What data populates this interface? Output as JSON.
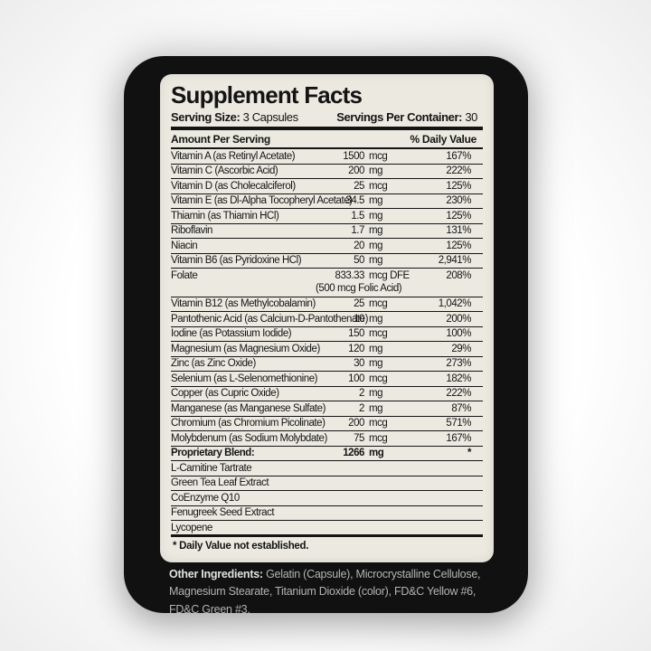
{
  "panel": {
    "title": "Supplement Facts",
    "serving_size_label": "Serving Size:",
    "serving_size_value": "3 Capsules",
    "servings_label": "Servings Per Container:",
    "servings_value": "30",
    "col_amount": "Amount Per Serving",
    "col_dv": "% Daily Value",
    "footnote": "* Daily Value not established."
  },
  "rows": [
    {
      "name": "Vitamin A (as Retinyl Acetate)",
      "amount": "1500",
      "unit": "mcg",
      "dv": "167%"
    },
    {
      "name": "Vitamin C (Ascorbic Acid)",
      "amount": "200",
      "unit": "mg",
      "dv": "222%"
    },
    {
      "name": "Vitamin D (as Cholecalciferol)",
      "amount": "25",
      "unit": "mcg",
      "dv": "125%"
    },
    {
      "name": "Vitamin E (as Dl-Alpha Tocopheryl Acetate)",
      "amount": "34.5",
      "unit": "mg",
      "dv": "230%"
    },
    {
      "name": "Thiamin (as Thiamin HCl)",
      "amount": "1.5",
      "unit": "mg",
      "dv": "125%"
    },
    {
      "name": "Riboflavin",
      "amount": "1.7",
      "unit": "mg",
      "dv": "131%"
    },
    {
      "name": "Niacin",
      "amount": "20",
      "unit": "mg",
      "dv": "125%"
    },
    {
      "name": "Vitamin B6 (as Pyridoxine HCl)",
      "amount": "50",
      "unit": "mg",
      "dv": "2,941%"
    },
    {
      "name": "Folate",
      "amount": "833.33",
      "unit": "mcg DFE",
      "dv": "208%",
      "sub": "(500 mcg Folic Acid)"
    },
    {
      "name": "Vitamin B12 (as Methylcobalamin)",
      "amount": "25",
      "unit": "mcg",
      "dv": "1,042%"
    },
    {
      "name": "Pantothenic Acid (as Calcium-D-Pantothenate)",
      "amount": "10",
      "unit": "mg",
      "dv": "200%"
    },
    {
      "name": "Iodine (as Potassium Iodide)",
      "amount": "150",
      "unit": "mcg",
      "dv": "100%"
    },
    {
      "name": "Magnesium (as Magnesium Oxide)",
      "amount": "120",
      "unit": "mg",
      "dv": "29%"
    },
    {
      "name": "Zinc (as Zinc Oxide)",
      "amount": "30",
      "unit": "mg",
      "dv": "273%"
    },
    {
      "name": "Selenium (as L-Selenomethionine)",
      "amount": "100",
      "unit": "mcg",
      "dv": "182%"
    },
    {
      "name": "Copper (as Cupric Oxide)",
      "amount": "2",
      "unit": "mg",
      "dv": "222%"
    },
    {
      "name": "Manganese (as Manganese Sulfate)",
      "amount": "2",
      "unit": "mg",
      "dv": "87%"
    },
    {
      "name": "Chromium (as Chromium Picolinate)",
      "amount": "200",
      "unit": "mcg",
      "dv": "571%"
    },
    {
      "name": "Molybdenum (as Sodium Molybdate)",
      "amount": "75",
      "unit": "mcg",
      "dv": "167%"
    },
    {
      "name": "Proprietary Blend:",
      "amount": "1266",
      "unit": "mg",
      "dv": "*",
      "bold": true
    },
    {
      "name": "L-Carnitine Tartrate"
    },
    {
      "name": "Green Tea Leaf Extract"
    },
    {
      "name": "CoEnzyme Q10"
    },
    {
      "name": "Fenugreek Seed Extract"
    },
    {
      "name": "Lycopene"
    }
  ],
  "other_ingredients": {
    "label": "Other Ingredients:",
    "text": "Gelatin (Capsule), Microcrystalline Cellulose, Magnesium Stearate, Titanium Dioxide (color), FD&C Yellow #6, FD&C Green #3."
  },
  "colors": {
    "label_black": "#111111",
    "panel_cream": "#ebe9e0",
    "ink": "#141414",
    "other_text": "#b3b3b3",
    "other_bold": "#e0e0e0"
  }
}
